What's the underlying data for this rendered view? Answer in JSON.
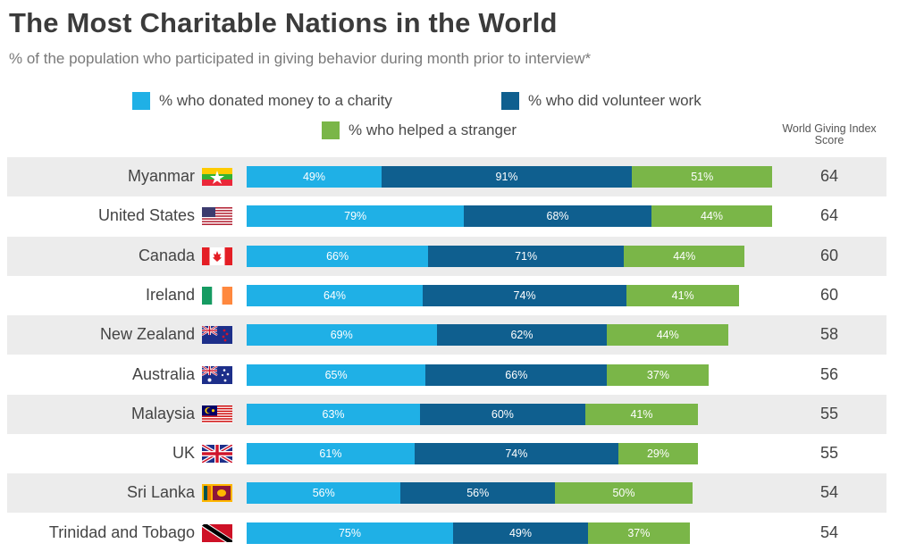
{
  "header": {
    "title": "The Most Charitable Nations in the World",
    "subtitle": "% of the population who participated in giving behavior during month prior to interview*"
  },
  "legend": {
    "money": "% who donated money to a charity",
    "volunteer": "% who did volunteer work",
    "stranger": "% who helped a stranger"
  },
  "score_header": "World Giving Index Score",
  "colors": {
    "money": "#1fb0e6",
    "volunteer": "#0f5f8f",
    "stranger": "#7ab648",
    "row_shade": "#ececec"
  },
  "chart_data": {
    "type": "bar",
    "orientation": "horizontal",
    "stacked": true,
    "categories": [
      "Myanmar",
      "United States",
      "Canada",
      "Ireland",
      "New Zealand",
      "Australia",
      "Malaysia",
      "UK",
      "Sri Lanka",
      "Trinidad and Tobago"
    ],
    "series": [
      {
        "name": "% who donated money to a charity",
        "values": [
          49,
          79,
          66,
          64,
          69,
          65,
          63,
          61,
          56,
          75
        ]
      },
      {
        "name": "% who did volunteer work",
        "values": [
          91,
          68,
          71,
          74,
          62,
          66,
          60,
          74,
          56,
          49
        ]
      },
      {
        "name": "% who helped a stranger",
        "values": [
          51,
          44,
          44,
          41,
          44,
          37,
          41,
          29,
          50,
          37
        ]
      }
    ],
    "data_labels": [
      [
        "49%",
        "91%",
        "51%"
      ],
      [
        "79%",
        "68%",
        "44%"
      ],
      [
        "66%",
        "71%",
        "44%"
      ],
      [
        "64%",
        "74%",
        "41%"
      ],
      [
        "69%",
        "62%",
        "44%"
      ],
      [
        "65%",
        "66%",
        "37%"
      ],
      [
        "63%",
        "60%",
        "41%"
      ],
      [
        "61%",
        "74%",
        "29%"
      ],
      [
        "56%",
        "56%",
        "50%"
      ],
      [
        "75%",
        "49%",
        "37%"
      ]
    ],
    "scores": [
      "64",
      "64",
      "60",
      "60",
      "58",
      "56",
      "55",
      "55",
      "54",
      "54"
    ],
    "flags": [
      "myanmar-flag-icon",
      "usa-flag-icon",
      "canada-flag-icon",
      "ireland-flag-icon",
      "new-zealand-flag-icon",
      "australia-flag-icon",
      "malaysia-flag-icon",
      "uk-flag-icon",
      "sri-lanka-flag-icon",
      "trinidad-tobago-flag-icon"
    ],
    "legend_position": "top-center",
    "grid": false
  }
}
